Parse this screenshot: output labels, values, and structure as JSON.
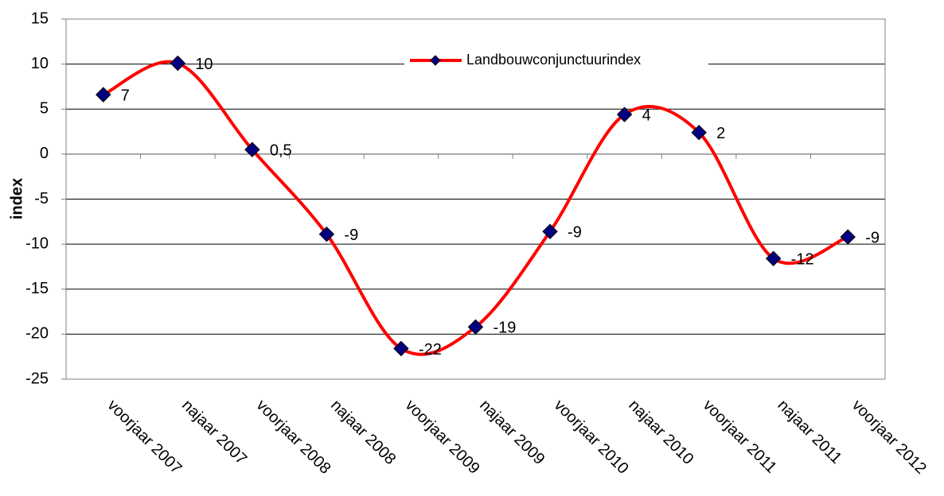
{
  "chart_data": {
    "type": "line",
    "y_label": "index",
    "categories": [
      "voorjaar 2007",
      "najaar 2007",
      "voorjaar 2008",
      "najaar 2008",
      "voorjaar 2009",
      "najaar 2009",
      "voorjaar 2010",
      "najaar 2010",
      "voorjaar 2011",
      "najaar 2011",
      "voorjaar 2012"
    ],
    "series": [
      {
        "name": "Landbouwconjunctuurindex",
        "color": "#ff0000",
        "marker_color": "#000080",
        "values": [
          6.6,
          10.1,
          0.5,
          -8.9,
          -21.6,
          -19.2,
          -8.6,
          4.4,
          2.4,
          -11.6,
          -9.2
        ],
        "value_labels": [
          "7",
          "10",
          "0,5",
          "-9",
          "-22",
          "-19",
          "-9",
          "4",
          "2",
          "-12",
          "-9"
        ]
      }
    ],
    "ylim": [
      -25,
      15
    ],
    "yticks": [
      -25,
      -20,
      -15,
      -10,
      -5,
      0,
      5,
      10,
      15
    ],
    "grid": true,
    "smooth": true
  }
}
